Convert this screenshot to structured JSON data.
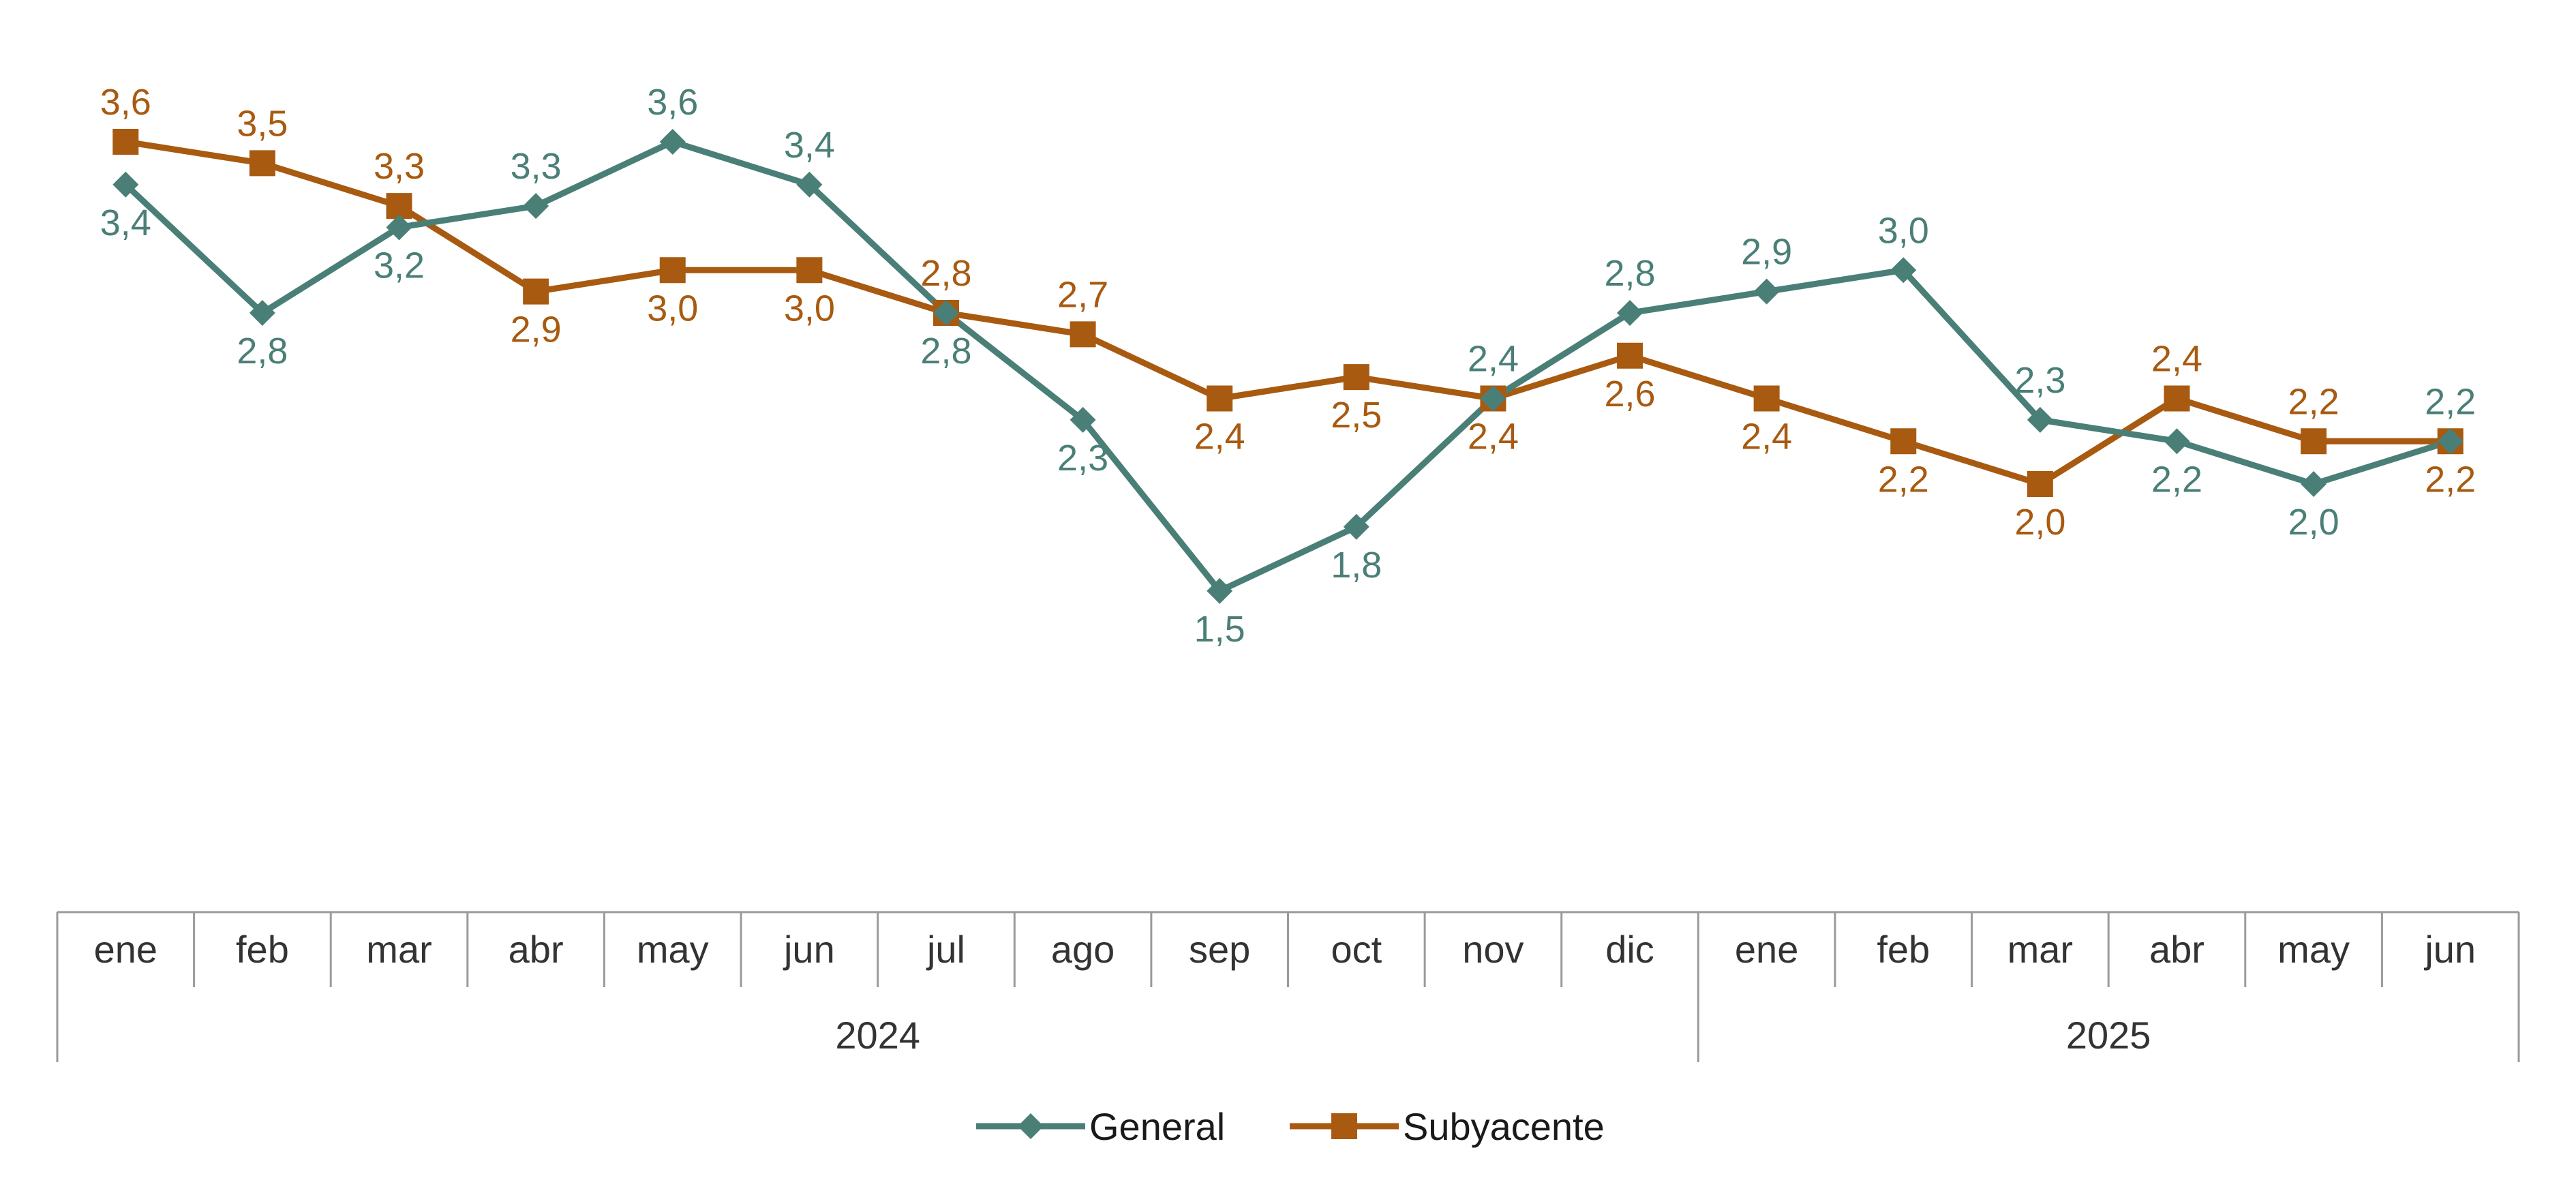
{
  "chart_data": {
    "type": "line",
    "title": "",
    "xlabel": "",
    "ylabel": "",
    "ylim": [
      0,
      4
    ],
    "grid": false,
    "legend_position": "bottom-center",
    "categories": [
      "ene",
      "feb",
      "mar",
      "abr",
      "may",
      "jun",
      "jul",
      "ago",
      "sep",
      "oct",
      "nov",
      "dic",
      "ene",
      "feb",
      "mar",
      "abr",
      "may",
      "jun"
    ],
    "groups": [
      {
        "label": "2024",
        "start": 0,
        "end": 11
      },
      {
        "label": "2025",
        "start": 12,
        "end": 17
      }
    ],
    "series": [
      {
        "name": "General",
        "color": "#4A7F77",
        "marker": "diamond",
        "values": [
          3.4,
          2.8,
          3.2,
          3.3,
          3.6,
          3.4,
          2.8,
          2.3,
          1.5,
          1.8,
          2.4,
          2.8,
          2.9,
          3.0,
          2.3,
          2.2,
          2.0,
          2.2
        ],
        "labels": [
          "3,4",
          "2,8",
          "3,2",
          "3,3",
          "3,6",
          "3,4",
          "2,8",
          "2,3",
          "1,5",
          "1,8",
          "2,4",
          "2,8",
          "2,9",
          "3,0",
          "2,3",
          "2,2",
          "2,0",
          "2,2"
        ],
        "label_side": [
          "below",
          "below",
          "below",
          "above",
          "above",
          "above",
          "below",
          "below",
          "below",
          "below",
          "above",
          "above",
          "above",
          "above",
          "above",
          "below",
          "below",
          "above"
        ]
      },
      {
        "name": "Subyacente",
        "color": "#A85A10",
        "marker": "square",
        "values": [
          3.6,
          3.5,
          3.3,
          2.9,
          3.0,
          3.0,
          2.8,
          2.7,
          2.4,
          2.5,
          2.4,
          2.6,
          2.4,
          2.2,
          2.0,
          2.4,
          2.2,
          2.2
        ],
        "labels": [
          "3,6",
          "3,5",
          "3,3",
          "2,9",
          "3,0",
          "3,0",
          "2,8",
          "2,7",
          "2,4",
          "2,5",
          "2,4",
          "2,6",
          "2,4",
          "2,2",
          "2,0",
          "2,4",
          "2,2",
          "2,2"
        ],
        "label_side": [
          "above",
          "above",
          "above",
          "below",
          "below",
          "below",
          "above",
          "above",
          "below",
          "below",
          "below",
          "below",
          "below",
          "below",
          "below",
          "above",
          "above",
          "below"
        ]
      }
    ]
  }
}
